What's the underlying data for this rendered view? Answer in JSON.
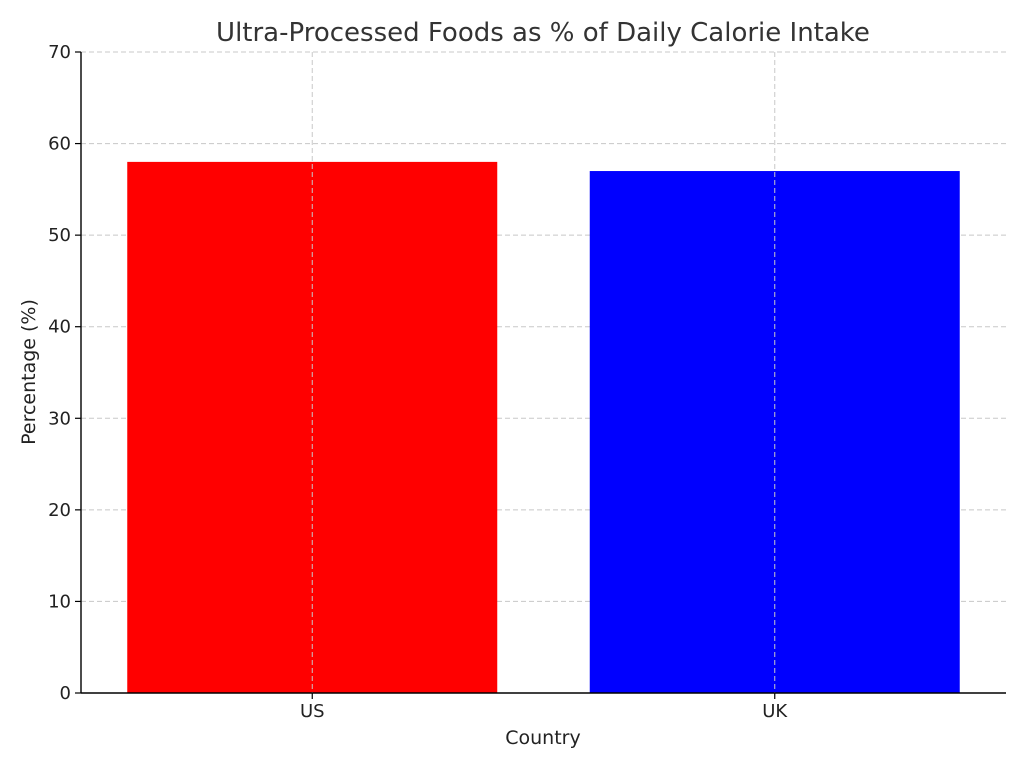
{
  "chart_data": {
    "type": "bar",
    "title": "Ultra-Processed Foods as % of Daily Calorie Intake",
    "xlabel": "Country",
    "ylabel": "Percentage (%)",
    "categories": [
      "US",
      "UK"
    ],
    "values": [
      58,
      57
    ],
    "colors": [
      "#ff0000",
      "#0000ff"
    ],
    "ylim": [
      0,
      70
    ],
    "yticks": [
      0,
      10,
      20,
      30,
      40,
      50,
      60,
      70
    ],
    "grid": true
  }
}
